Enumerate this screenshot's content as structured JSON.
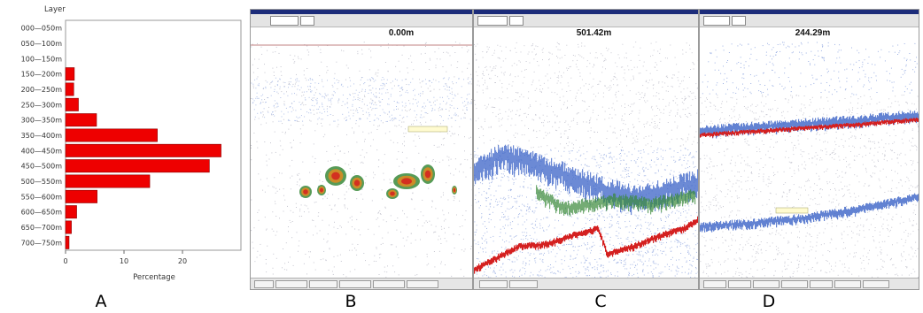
{
  "chart_data": {
    "type": "bar",
    "orientation": "horizontal",
    "title": "",
    "ylabel": "Layer",
    "xlabel": "Percentage",
    "categories": [
      "000—050m",
      "050—100m",
      "100—150m",
      "150—200m",
      "200—250m",
      "250—300m",
      "300—350m",
      "350—400m",
      "400—450m",
      "450—500m",
      "500—550m",
      "550—600m",
      "600—650m",
      "650—700m",
      "700—750m"
    ],
    "values": [
      0,
      0,
      0,
      1.5,
      1.4,
      2.2,
      5.3,
      15.7,
      26.6,
      24.6,
      14.4,
      5.4,
      1.9,
      1.0,
      0.6
    ],
    "xlim": [
      0,
      30
    ],
    "xticks": [
      "0",
      "10",
      "20"
    ],
    "bar_color": "#ee0000",
    "grid": false
  },
  "panels": {
    "a": {
      "label": "A"
    },
    "b": {
      "label": "B",
      "range": "0.00m"
    },
    "c": {
      "label": "C",
      "range": "501.42m"
    },
    "d": {
      "label": "D",
      "range": "244.29m"
    }
  },
  "colors": {
    "echo_strong": "#d42020",
    "echo_mid": "#3a8a3a",
    "echo_orange": "#e08a20",
    "echo_weak": "#3c64c8",
    "echo_noise": "#8a8aa0",
    "window_title": "#1c2c7a"
  }
}
